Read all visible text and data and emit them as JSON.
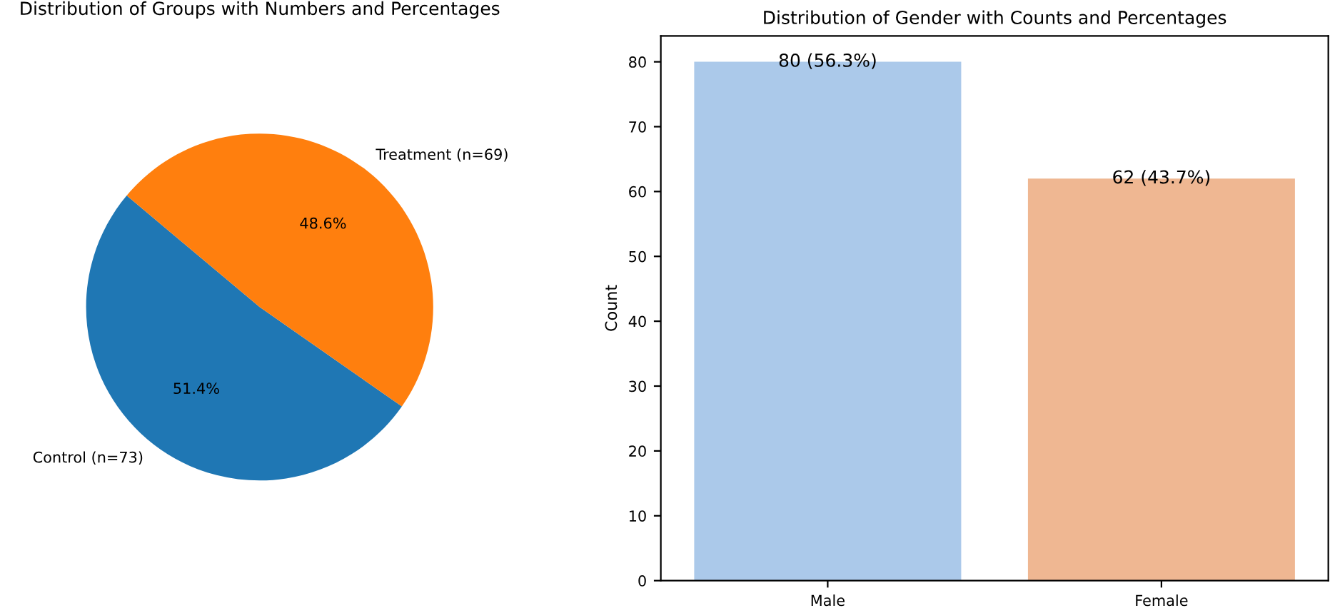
{
  "chart_data": [
    {
      "type": "pie",
      "title": "Distribution of Groups with Numbers and Percentages",
      "categories": [
        "Control (n=73)",
        "Treatment (n=69)"
      ],
      "values": [
        51.4,
        48.6
      ],
      "colors": [
        "#1f77b4",
        "#ff7f0e"
      ],
      "value_labels": [
        "51.4%",
        "48.6%"
      ]
    },
    {
      "type": "bar",
      "title": "Distribution of Gender with Counts and Percentages",
      "ylabel": "Count",
      "categories": [
        "Male",
        "Female"
      ],
      "values": [
        80,
        62
      ],
      "colors": [
        "#abc9ea",
        "#efb792"
      ],
      "value_labels": [
        "80 (56.3%)",
        "62 (43.7%)"
      ],
      "ylim": [
        0,
        84
      ],
      "yticks": [
        0,
        10,
        20,
        30,
        40,
        50,
        60,
        70,
        80
      ],
      "grid": false
    }
  ]
}
